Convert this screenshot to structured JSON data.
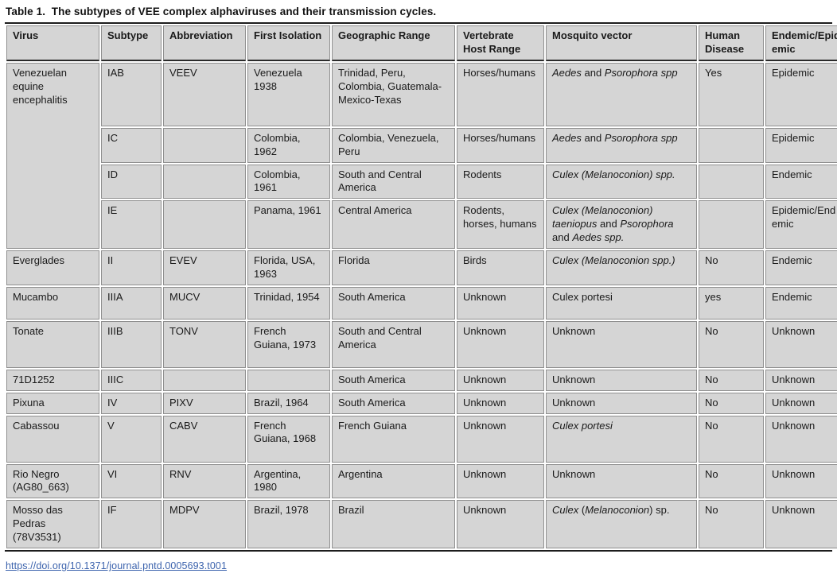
{
  "title": "Table 1.  The subtypes of VEE complex alphaviruses and their transmission cycles.",
  "footer": {
    "doi_link": "https://doi.org/10.1371/journal.pntd.0005693.t001"
  },
  "colors": {
    "cell_background": "#d5d5d5",
    "grid_border": "#8f8f8f",
    "rule_black": "#1d1d1d",
    "link_blue": "#3c63ad"
  },
  "table": {
    "columns": [
      "Virus",
      "Subtype",
      "Abbreviation",
      "First Isolation",
      "Geographic Range",
      "Vertebrate Host Range",
      "Mosquito vector",
      "Human Disease",
      "Endemic/Epidemic"
    ],
    "rows": [
      {
        "cells": [
          {
            "text": "Venezuelan equine encephalitis",
            "rowspan": 4
          },
          {
            "text": "IAB"
          },
          {
            "text": "VEEV"
          },
          {
            "text": "Venezuela 1938"
          },
          {
            "text": "Trinidad, Peru, Colombia, Guatemala-Mexico-Texas"
          },
          {
            "text": "Horses/humans"
          },
          {
            "runs": [
              {
                "t": "Aedes",
                "i": 1
              },
              {
                "t": " and ",
                "i": 0
              },
              {
                "t": "Psorophora spp",
                "i": 1
              }
            ]
          },
          {
            "text": "Yes"
          },
          {
            "text": "Epidemic"
          }
        ]
      },
      {
        "cells": [
          null,
          {
            "text": "IC"
          },
          {
            "text": ""
          },
          {
            "text": "Colombia, 1962"
          },
          {
            "text": "Colombia, Venezuela, Peru"
          },
          {
            "text": "Horses/humans"
          },
          {
            "runs": [
              {
                "t": "Aedes",
                "i": 1
              },
              {
                "t": " and ",
                "i": 0
              },
              {
                "t": "Psorophora spp",
                "i": 1
              }
            ]
          },
          {
            "text": ""
          },
          {
            "text": "Epidemic"
          }
        ]
      },
      {
        "cells": [
          null,
          {
            "text": "ID"
          },
          {
            "text": ""
          },
          {
            "text": "Colombia, 1961"
          },
          {
            "text": "South and Central America"
          },
          {
            "text": "Rodents"
          },
          {
            "runs": [
              {
                "t": "Culex (Melanoconion) spp.",
                "i": 1
              }
            ]
          },
          {
            "text": ""
          },
          {
            "text": "Endemic"
          }
        ]
      },
      {
        "cells": [
          null,
          {
            "text": "IE"
          },
          {
            "text": ""
          },
          {
            "text": "Panama, 1961"
          },
          {
            "text": "Central America"
          },
          {
            "text": "Rodents, horses, humans"
          },
          {
            "runs": [
              {
                "t": "Culex (Melanoconion) taeniopus",
                "i": 1
              },
              {
                "t": " and ",
                "i": 0
              },
              {
                "t": "Psorophora",
                "i": 1
              },
              {
                "t": " and ",
                "i": 0
              },
              {
                "t": "Aedes spp.",
                "i": 1
              }
            ]
          },
          {
            "text": ""
          },
          {
            "text": "Epidemic/Endemic"
          }
        ]
      },
      {
        "cells": [
          {
            "text": "Everglades"
          },
          {
            "text": "II"
          },
          {
            "text": "EVEV"
          },
          {
            "text": "Florida, USA, 1963"
          },
          {
            "text": "Florida"
          },
          {
            "text": "Birds"
          },
          {
            "runs": [
              {
                "t": "Culex (Melanoconion spp.)",
                "i": 1
              }
            ]
          },
          {
            "text": "No"
          },
          {
            "text": "Endemic"
          }
        ]
      },
      {
        "cells": [
          {
            "text": "Mucambo"
          },
          {
            "text": "IIIA"
          },
          {
            "text": "MUCV"
          },
          {
            "text": "Trinidad, 1954"
          },
          {
            "text": "South America"
          },
          {
            "text": "Unknown"
          },
          {
            "text": "Culex portesi"
          },
          {
            "text": "yes"
          },
          {
            "text": "Endemic"
          }
        ]
      },
      {
        "cells": [
          {
            "text": "Tonate"
          },
          {
            "text": "IIIB"
          },
          {
            "text": "TONV"
          },
          {
            "text": "French Guiana, 1973"
          },
          {
            "text": "South and Central America"
          },
          {
            "text": "Unknown"
          },
          {
            "text": "Unknown"
          },
          {
            "text": "No"
          },
          {
            "text": "Unknown"
          }
        ]
      },
      {
        "cells": [
          {
            "text": "71D1252"
          },
          {
            "text": "IIIC"
          },
          {
            "text": ""
          },
          {
            "text": ""
          },
          {
            "text": "South America"
          },
          {
            "text": "Unknown"
          },
          {
            "text": "Unknown"
          },
          {
            "text": "No"
          },
          {
            "text": "Unknown"
          }
        ]
      },
      {
        "cells": [
          {
            "text": "Pixuna"
          },
          {
            "text": "IV"
          },
          {
            "text": "PIXV"
          },
          {
            "text": "Brazil, 1964"
          },
          {
            "text": "South America"
          },
          {
            "text": "Unknown"
          },
          {
            "text": "Unknown"
          },
          {
            "text": "No"
          },
          {
            "text": "Unknown"
          }
        ]
      },
      {
        "cells": [
          {
            "text": "Cabassou"
          },
          {
            "text": "V"
          },
          {
            "text": "CABV"
          },
          {
            "text": "French Guiana, 1968"
          },
          {
            "text": "French Guiana"
          },
          {
            "text": "Unknown"
          },
          {
            "runs": [
              {
                "t": "Culex portesi",
                "i": 1
              }
            ]
          },
          {
            "text": "No"
          },
          {
            "text": "Unknown"
          }
        ]
      },
      {
        "cells": [
          {
            "text": "Rio Negro (AG80_663)"
          },
          {
            "text": "VI"
          },
          {
            "text": "RNV"
          },
          {
            "text": "Argentina, 1980"
          },
          {
            "text": "Argentina"
          },
          {
            "text": "Unknown"
          },
          {
            "text": "Unknown"
          },
          {
            "text": "No"
          },
          {
            "text": "Unknown"
          }
        ]
      },
      {
        "cells": [
          {
            "text": "Mosso das Pedras (78V3531)"
          },
          {
            "text": "IF"
          },
          {
            "text": "MDPV"
          },
          {
            "text": "Brazil, 1978"
          },
          {
            "text": "Brazil"
          },
          {
            "text": "Unknown"
          },
          {
            "runs": [
              {
                "t": "Culex",
                "i": 1
              },
              {
                "t": " (",
                "i": 0
              },
              {
                "t": "Melanoconion",
                "i": 1
              },
              {
                "t": ") sp.",
                "i": 0
              }
            ]
          },
          {
            "text": "No"
          },
          {
            "text": "Unknown"
          }
        ]
      }
    ]
  }
}
